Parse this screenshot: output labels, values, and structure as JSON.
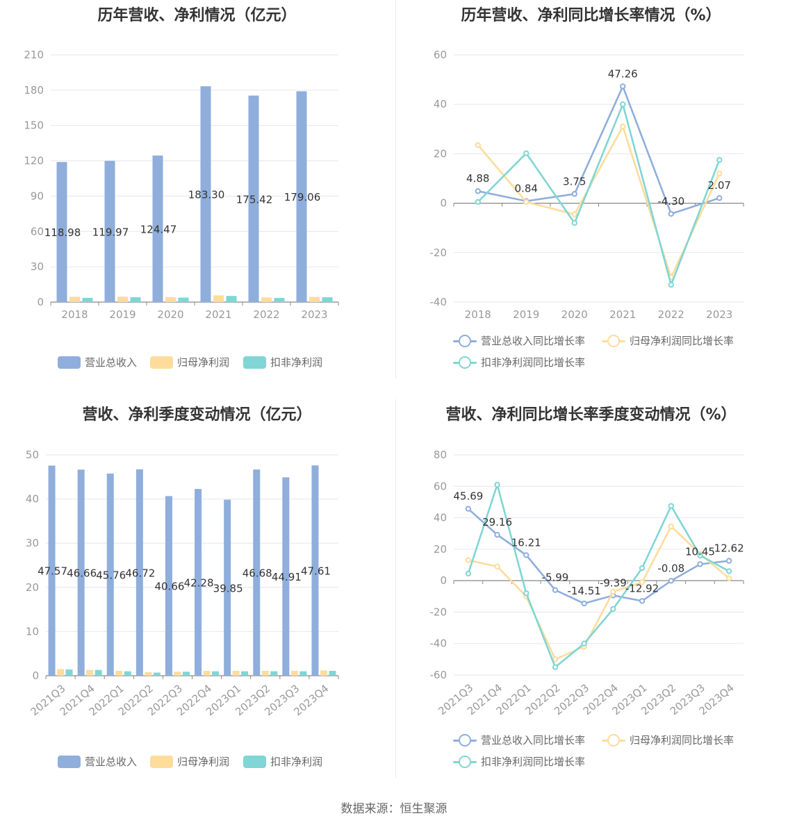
{
  "colors": {
    "revenue": "#8faedc",
    "net_profit": "#fddc9c",
    "deducted_profit": "#7fd6d4",
    "grid": "#e6e6ee",
    "axis_text": "#999999",
    "label_text": "#333333"
  },
  "source": "数据来源：恒生聚源",
  "chart_data": [
    {
      "id": "annual-bar",
      "type": "bar",
      "title": "历年营收、净利情况（亿元）",
      "categories": [
        "2018",
        "2019",
        "2020",
        "2021",
        "2022",
        "2023"
      ],
      "ylim": [
        0,
        210
      ],
      "yticks": [
        0,
        30,
        60,
        90,
        120,
        150,
        180,
        210
      ],
      "grid": true,
      "legend_position": "bottom",
      "series": [
        {
          "name": "营业总收入",
          "color_key": "revenue",
          "values": [
            118.98,
            119.97,
            124.47,
            183.3,
            175.42,
            179.06
          ],
          "labels": [
            "118.98",
            "119.97",
            "124.47",
            "183.30",
            "175.42",
            "179.06"
          ]
        },
        {
          "name": "归母净利润",
          "color_key": "net_profit",
          "values": [
            4.5,
            4.6,
            4.3,
            5.7,
            4.0,
            4.4
          ]
        },
        {
          "name": "扣非净利润",
          "color_key": "deducted_profit",
          "values": [
            3.6,
            4.1,
            3.8,
            5.2,
            3.5,
            4.1
          ]
        }
      ]
    },
    {
      "id": "annual-line",
      "type": "line",
      "title": "历年营收、净利同比增长率情况（%）",
      "categories": [
        "2018",
        "2019",
        "2020",
        "2021",
        "2022",
        "2023"
      ],
      "ylim": [
        -40,
        60
      ],
      "yticks": [
        -40,
        -20,
        0,
        20,
        40,
        60
      ],
      "grid": true,
      "legend_position": "bottom",
      "series": [
        {
          "name": "营业总收入同比增长率",
          "color_key": "revenue",
          "values": [
            4.88,
            0.84,
            3.75,
            47.26,
            -4.3,
            2.07
          ],
          "labels": [
            "4.88",
            "0.84",
            "3.75",
            "47.26",
            "-4.30",
            "2.07"
          ]
        },
        {
          "name": "归母净利润同比增长率",
          "color_key": "net_profit",
          "values": [
            23.5,
            0.5,
            -4.5,
            31.0,
            -30.0,
            12.0
          ]
        },
        {
          "name": "扣非净利润同比增长率",
          "color_key": "deducted_profit",
          "values": [
            0.5,
            20.2,
            -8.0,
            40.0,
            -33.0,
            17.5
          ]
        }
      ]
    },
    {
      "id": "quarterly-bar",
      "type": "bar",
      "title": "营收、净利季度变动情况（亿元）",
      "categories": [
        "2021Q3",
        "2021Q4",
        "2022Q1",
        "2022Q2",
        "2022Q3",
        "2022Q4",
        "2023Q1",
        "2023Q2",
        "2023Q3",
        "2023Q4"
      ],
      "ylim": [
        0,
        50
      ],
      "yticks": [
        0,
        10,
        20,
        30,
        40,
        50
      ],
      "grid": true,
      "legend_position": "bottom",
      "series": [
        {
          "name": "营业总收入",
          "color_key": "revenue",
          "values": [
            47.57,
            46.66,
            45.76,
            46.72,
            40.66,
            42.28,
            39.85,
            46.68,
            44.91,
            47.61
          ],
          "labels": [
            "47.57",
            "46.66",
            "45.76",
            "46.72",
            "40.66",
            "42.28",
            "39.85",
            "46.68",
            "44.91",
            "47.61"
          ]
        },
        {
          "name": "归母净利润",
          "color_key": "net_profit",
          "values": [
            1.5,
            1.3,
            1.1,
            0.8,
            0.9,
            1.1,
            1.1,
            1.1,
            1.1,
            1.2
          ]
        },
        {
          "name": "扣非净利润",
          "color_key": "deducted_profit",
          "values": [
            1.4,
            1.3,
            1.0,
            0.7,
            0.9,
            1.0,
            1.0,
            1.0,
            1.0,
            1.1
          ]
        }
      ]
    },
    {
      "id": "quarterly-line",
      "type": "line",
      "title": "营收、净利同比增长率季度变动情况（%）",
      "categories": [
        "2021Q3",
        "2021Q4",
        "2022Q1",
        "2022Q2",
        "2022Q3",
        "2022Q4",
        "2023Q1",
        "2023Q2",
        "2023Q3",
        "2023Q4"
      ],
      "ylim": [
        -60,
        80
      ],
      "yticks": [
        -60,
        -40,
        -20,
        0,
        20,
        40,
        60,
        80
      ],
      "grid": true,
      "legend_position": "bottom",
      "series": [
        {
          "name": "营业总收入同比增长率",
          "color_key": "revenue",
          "values": [
            45.69,
            29.16,
            16.21,
            -5.99,
            -14.51,
            -9.39,
            -12.92,
            -0.08,
            10.45,
            12.62
          ],
          "labels": [
            "45.69",
            "29.16",
            "16.21",
            "-5.99",
            "-14.51",
            "-9.39",
            "-12.92",
            "-0.08",
            "10.45",
            "12.62"
          ]
        },
        {
          "name": "归母净利润同比增长率",
          "color_key": "net_profit",
          "values": [
            13.0,
            9.0,
            -10.0,
            -50.0,
            -42.0,
            -7.0,
            -1.0,
            34.5,
            17.0,
            1.5
          ]
        },
        {
          "name": "扣非净利润同比增长率",
          "color_key": "deducted_profit",
          "values": [
            4.5,
            61.0,
            -8.0,
            -55.0,
            -40.0,
            -18.0,
            8.0,
            47.5,
            16.0,
            6.0
          ]
        }
      ]
    }
  ]
}
